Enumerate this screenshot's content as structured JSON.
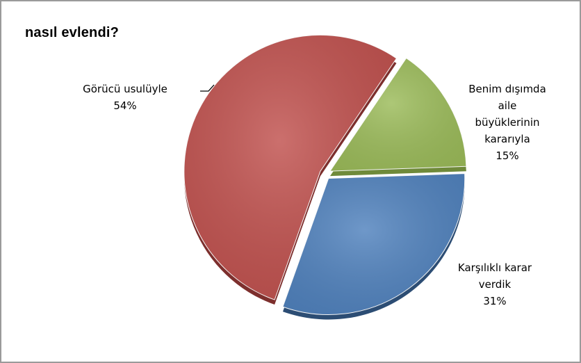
{
  "chart_data": {
    "type": "pie",
    "title": "nasıl evlendi?",
    "slices": [
      {
        "name": "Benim dışımda aile büyüklerinin kararıyla",
        "value": 15,
        "label_lines": [
          "Benim dışımda",
          "aile",
          "büyüklerinin",
          "kararıyla",
          "15%"
        ],
        "color": "#9BBB59",
        "shade": "#6f8a3a"
      },
      {
        "name": "Karşılıklı karar verdik",
        "value": 31,
        "label_lines": [
          "Karşılıklı karar",
          "verdik",
          "31%"
        ],
        "color": "#4F81BD",
        "shade": "#2c4d74"
      },
      {
        "name": "Görücü usulüyle",
        "value": 54,
        "label_lines": [
          "Görücü usulüyle",
          "54%"
        ],
        "color": "#C0504D",
        "shade": "#7d2f2d"
      }
    ],
    "legend": "none",
    "style": "3d-exploded"
  }
}
